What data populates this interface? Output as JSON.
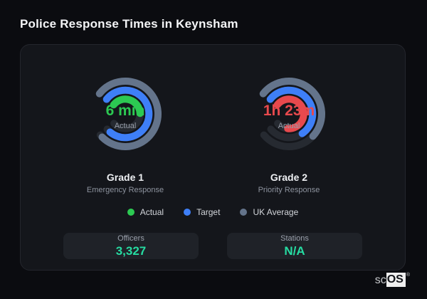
{
  "title": "Police Response Times in Keynsham",
  "colors": {
    "green": "#2cc952",
    "blue": "#3e7ff7",
    "gray": "#64748b",
    "red": "#e8494d",
    "track": "#262a31",
    "stat_value": "#26dca2"
  },
  "chart_data": [
    {
      "type": "radial-gauge",
      "title": "Grade 1",
      "subtitle": "Emergency Response",
      "center_value": "6 min",
      "center_label": "Actual",
      "value_color": "#2cc952",
      "start_bearing_deg": 308,
      "track_sweep_deg": 282,
      "rings": [
        {
          "name": "UK Average",
          "color": "#64748b",
          "sweep_deg": 277
        },
        {
          "name": "Target",
          "color": "#3e7ff7",
          "sweep_deg": 272
        },
        {
          "name": "Actual",
          "color": "#2cc952",
          "sweep_deg": 140
        }
      ]
    },
    {
      "type": "radial-gauge",
      "title": "Grade 2",
      "subtitle": "Priority Response",
      "center_value": "1h 23m",
      "center_label": "Actual",
      "value_color": "#e8494d",
      "start_bearing_deg": 308,
      "track_sweep_deg": 282,
      "rings": [
        {
          "name": "UK Average",
          "color": "#64748b",
          "sweep_deg": 185
        },
        {
          "name": "Target",
          "color": "#3e7ff7",
          "sweep_deg": 198
        },
        {
          "name": "Actual",
          "color": "#e8494d",
          "sweep_deg": 237
        }
      ]
    }
  ],
  "legend": [
    {
      "label": "Actual",
      "color": "#2cc952"
    },
    {
      "label": "Target",
      "color": "#3e7ff7"
    },
    {
      "label": "UK Average",
      "color": "#64748b"
    }
  ],
  "stats": [
    {
      "label": "Officers",
      "value": "3,327"
    },
    {
      "label": "Stations",
      "value": "N/A"
    }
  ],
  "brand": {
    "prefix": "sc",
    "suffix": "OS",
    "registered": "®"
  }
}
